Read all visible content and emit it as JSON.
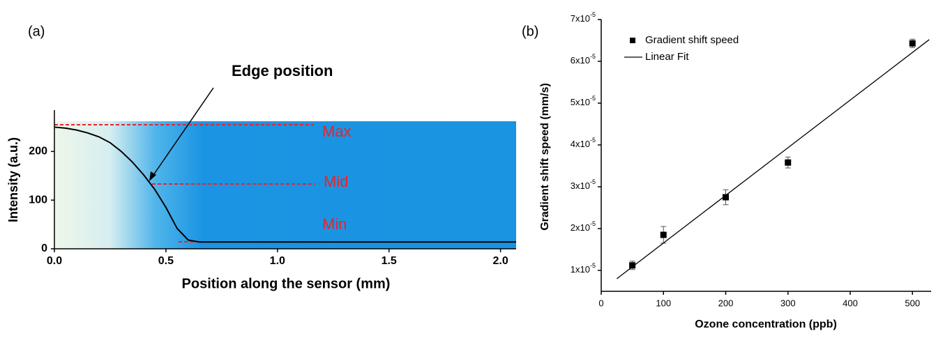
{
  "chart_data": [
    {
      "type": "line",
      "panel": "(a)",
      "xlabel": "Position along the sensor (mm)",
      "ylabel": "Intensity (a.u.)",
      "annotations": [
        "Edge position",
        "Max",
        "Mid",
        "Min"
      ],
      "x": [
        0,
        0.05,
        0.1,
        0.15,
        0.2,
        0.25,
        0.3,
        0.35,
        0.4,
        0.45,
        0.5,
        0.55,
        0.6,
        0.65,
        0.7,
        1.0,
        1.5,
        2.07
      ],
      "values": [
        250,
        248,
        244,
        238,
        230,
        218,
        200,
        178,
        152,
        122,
        85,
        42,
        18,
        14,
        14,
        14,
        14,
        14
      ],
      "color": "#000000",
      "xlim": [
        0,
        2.07
      ],
      "ylim": [
        0,
        285
      ],
      "xticks": [
        {
          "value": 0,
          "label": "0.0"
        },
        0.5,
        {
          "value": 1,
          "label": "1.0"
        },
        1.5,
        {
          "value": 2,
          "label": "2.0"
        }
      ],
      "yticks": [
        0,
        100,
        200
      ]
    },
    {
      "type": "scatter",
      "panel": "(b)",
      "xlabel": "Ozone concentration (ppb)",
      "ylabel": "Gradient shift speed (mm/s)",
      "legend": "upper left",
      "series": [
        {
          "name": "Gradient shift speed",
          "type": "scatter",
          "color": "#000000",
          "x": [
            50,
            100,
            200,
            300,
            500
          ],
          "values": [
            1.12e-05,
            1.85e-05,
            2.75e-05,
            3.58e-05,
            6.43e-05
          ],
          "errors": [
            1e-06,
            2e-06,
            1.8e-06,
            1.3e-06,
            1e-06
          ]
        },
        {
          "name": "Linear Fit",
          "type": "line",
          "color": "#000000",
          "x": [
            25,
            527
          ],
          "values": [
            8e-06,
            6.52e-05
          ]
        }
      ],
      "xlim": [
        0,
        530
      ],
      "ylim": [
        5e-06,
        7e-05
      ],
      "xticks": [
        0,
        100,
        200,
        300,
        400,
        500
      ],
      "yticks": [
        {
          "value": 1e-05,
          "label": "1x10-5"
        },
        {
          "value": 2e-05,
          "label": "2x10-5"
        },
        {
          "value": 3e-05,
          "label": "3x10-5"
        },
        {
          "value": 4e-05,
          "label": "4x10-5"
        },
        {
          "value": 5e-05,
          "label": "5x10-5"
        },
        {
          "value": 6e-05,
          "label": "6x10-5"
        },
        {
          "value": 7e-05,
          "label": "7x10-5"
        }
      ]
    }
  ]
}
